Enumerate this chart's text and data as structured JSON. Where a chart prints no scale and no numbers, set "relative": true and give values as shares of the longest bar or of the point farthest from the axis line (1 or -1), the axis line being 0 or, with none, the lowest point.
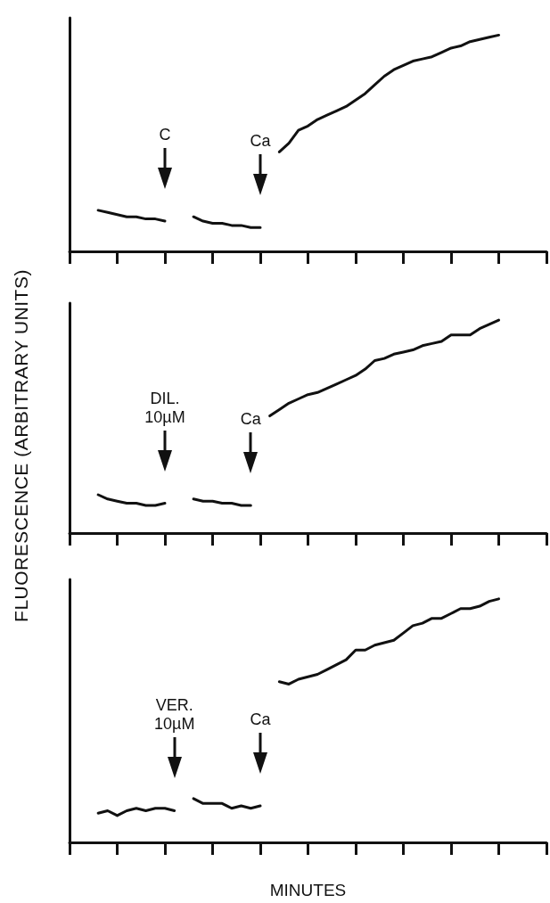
{
  "chart_data": [
    {
      "type": "line",
      "relative": true,
      "categories": [
        null,
        null,
        null,
        null,
        null,
        null,
        null,
        null,
        null,
        null,
        null,
        null,
        null,
        null,
        null,
        null,
        null,
        null,
        null,
        null,
        null,
        null,
        null,
        null,
        null,
        null,
        null,
        null,
        null,
        null,
        null,
        null,
        null,
        null,
        null,
        null,
        null,
        null,
        null,
        null,
        null,
        null,
        null,
        null,
        null,
        null,
        null,
        null,
        null,
        null,
        null
      ],
      "series": [
        {
          "color": "#111111",
          "values": [
            null,
            null,
            null,
            0.19,
            0.18,
            0.17,
            0.16,
            0.16,
            0.15,
            0.15,
            0.14,
            null,
            null,
            null,
            null,
            null,
            null,
            null,
            null,
            null,
            null,
            null,
            null,
            null,
            null,
            null,
            null,
            null,
            null,
            null,
            null,
            null,
            null,
            null,
            null,
            null,
            null,
            null,
            null,
            null,
            null,
            null,
            null,
            null,
            null,
            null,
            null,
            null,
            null,
            null,
            null
          ]
        },
        {
          "color": "#111111",
          "values": [
            null,
            null,
            null,
            null,
            null,
            null,
            null,
            null,
            null,
            null,
            null,
            null,
            null,
            0.16,
            0.14,
            0.13,
            0.13,
            0.12,
            0.12,
            0.11,
            0.11,
            null,
            null,
            null,
            null,
            null,
            null,
            null,
            null,
            null,
            null,
            null,
            null,
            null,
            null,
            null,
            null,
            null,
            null,
            null,
            null,
            null,
            null,
            null,
            null,
            null,
            null,
            null,
            null,
            null,
            null
          ]
        },
        {
          "color": "#111111",
          "values": [
            null,
            null,
            null,
            null,
            null,
            null,
            null,
            null,
            null,
            null,
            null,
            null,
            null,
            null,
            null,
            null,
            null,
            null,
            null,
            null,
            null,
            null,
            0.46,
            0.5,
            0.56,
            0.58,
            0.61,
            0.63,
            0.65,
            0.67,
            0.7,
            0.73,
            0.77,
            0.81,
            0.84,
            0.86,
            0.88,
            0.89,
            0.9,
            0.92,
            0.94,
            0.95,
            0.97,
            0.98,
            0.99,
            1.0,
            null,
            null,
            null,
            null,
            null
          ]
        }
      ],
      "annotations": [
        "C",
        "Ca"
      ]
    },
    {
      "type": "line",
      "relative": true,
      "ylabel": "FLUORESCENCE (ARBITRARY UNITS)",
      "categories": [
        null,
        null,
        null,
        null,
        null,
        null,
        null,
        null,
        null,
        null,
        null,
        null,
        null,
        null,
        null,
        null,
        null,
        null,
        null,
        null,
        null,
        null,
        null,
        null,
        null,
        null,
        null,
        null,
        null,
        null,
        null,
        null,
        null,
        null,
        null,
        null,
        null,
        null,
        null,
        null,
        null,
        null,
        null,
        null,
        null,
        null,
        null,
        null,
        null,
        null,
        null
      ],
      "series": [
        {
          "color": "#111111",
          "values": [
            null,
            null,
            null,
            0.18,
            0.16,
            0.15,
            0.14,
            0.14,
            0.13,
            0.13,
            0.14,
            null,
            null,
            null,
            null,
            null,
            null,
            null,
            null,
            null,
            null,
            null,
            null,
            null,
            null,
            null,
            null,
            null,
            null,
            null,
            null,
            null,
            null,
            null,
            null,
            null,
            null,
            null,
            null,
            null,
            null,
            null,
            null,
            null,
            null,
            null,
            null,
            null,
            null,
            null,
            null
          ]
        },
        {
          "color": "#111111",
          "values": [
            null,
            null,
            null,
            null,
            null,
            null,
            null,
            null,
            null,
            null,
            null,
            null,
            null,
            0.16,
            0.15,
            0.15,
            0.14,
            0.14,
            0.13,
            0.13,
            null,
            null,
            null,
            null,
            null,
            null,
            null,
            null,
            null,
            null,
            null,
            null,
            null,
            null,
            null,
            null,
            null,
            null,
            null,
            null,
            null,
            null,
            null,
            null,
            null,
            null,
            null,
            null,
            null,
            null,
            null
          ]
        },
        {
          "color": "#111111",
          "values": [
            null,
            null,
            null,
            null,
            null,
            null,
            null,
            null,
            null,
            null,
            null,
            null,
            null,
            null,
            null,
            null,
            null,
            null,
            null,
            null,
            null,
            0.55,
            0.58,
            0.61,
            0.63,
            0.65,
            0.66,
            0.68,
            0.7,
            0.72,
            0.74,
            0.77,
            0.81,
            0.82,
            0.84,
            0.85,
            0.86,
            0.88,
            0.89,
            0.9,
            0.93,
            0.93,
            0.93,
            0.96,
            0.98,
            1.0,
            null,
            null,
            null,
            null,
            null
          ]
        }
      ],
      "annotations": [
        "DIL.\n10µM",
        "Ca"
      ]
    },
    {
      "type": "line",
      "relative": true,
      "xlabel": "MINUTES",
      "categories": [
        null,
        null,
        null,
        null,
        null,
        null,
        null,
        null,
        null,
        null,
        null,
        null,
        null,
        null,
        null,
        null,
        null,
        null,
        null,
        null,
        null,
        null,
        null,
        null,
        null,
        null,
        null,
        null,
        null,
        null,
        null,
        null,
        null,
        null,
        null,
        null,
        null,
        null,
        null,
        null,
        null,
        null,
        null,
        null,
        null,
        null,
        null,
        null,
        null,
        null,
        null
      ],
      "series": [
        {
          "color": "#111111",
          "values": [
            null,
            null,
            null,
            0.12,
            0.13,
            0.11,
            0.13,
            0.14,
            0.13,
            0.14,
            0.14,
            0.13,
            null,
            null,
            null,
            null,
            null,
            null,
            null,
            null,
            null,
            null,
            null,
            null,
            null,
            null,
            null,
            null,
            null,
            null,
            null,
            null,
            null,
            null,
            null,
            null,
            null,
            null,
            null,
            null,
            null,
            null,
            null,
            null,
            null,
            null,
            null,
            null,
            null,
            null,
            null
          ]
        },
        {
          "color": "#111111",
          "values": [
            null,
            null,
            null,
            null,
            null,
            null,
            null,
            null,
            null,
            null,
            null,
            null,
            null,
            0.18,
            0.16,
            0.16,
            0.16,
            0.14,
            0.15,
            0.14,
            0.15,
            null,
            null,
            null,
            null,
            null,
            null,
            null,
            null,
            null,
            null,
            null,
            null,
            null,
            null,
            null,
            null,
            null,
            null,
            null,
            null,
            null,
            null,
            null,
            null,
            null,
            null,
            null,
            null,
            null,
            null
          ]
        },
        {
          "color": "#111111",
          "values": [
            null,
            null,
            null,
            null,
            null,
            null,
            null,
            null,
            null,
            null,
            null,
            null,
            null,
            null,
            null,
            null,
            null,
            null,
            null,
            null,
            null,
            null,
            0.66,
            0.65,
            0.67,
            0.68,
            0.69,
            0.71,
            0.73,
            0.75,
            0.79,
            0.79,
            0.81,
            0.82,
            0.83,
            0.86,
            0.89,
            0.9,
            0.92,
            0.92,
            0.94,
            0.96,
            0.96,
            0.97,
            0.99,
            1.0,
            null,
            null,
            null,
            null,
            null
          ]
        }
      ],
      "annotations": [
        "VER.\n10µM",
        "Ca"
      ]
    }
  ]
}
